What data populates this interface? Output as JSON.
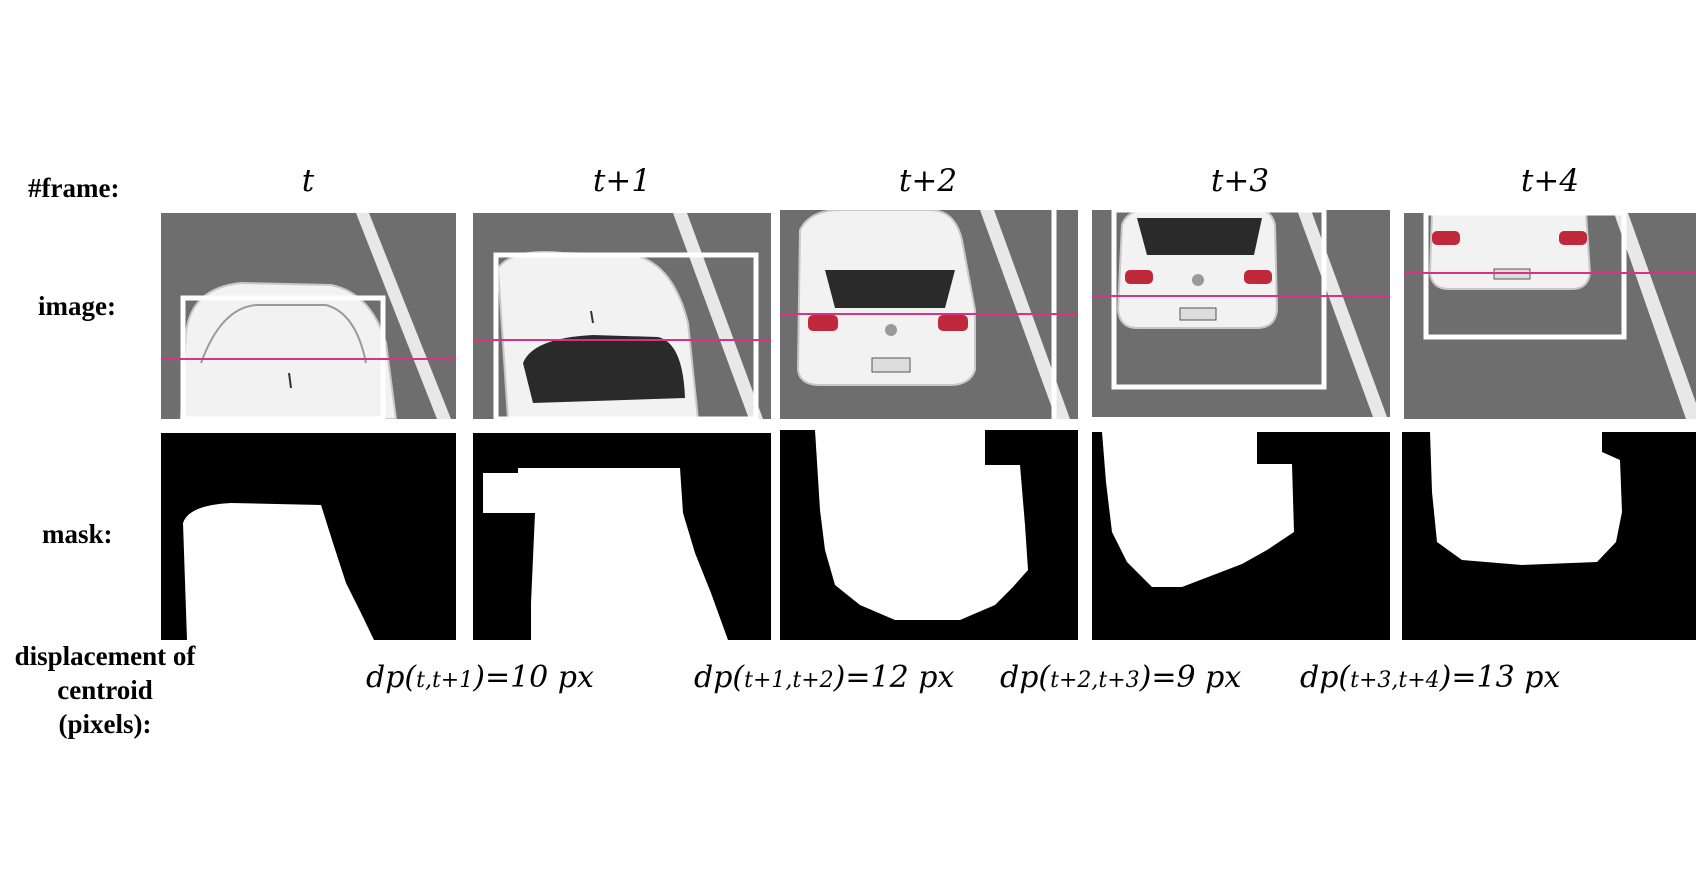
{
  "row_labels": {
    "frame": "#frame:",
    "image": "image:",
    "mask": "mask:",
    "displacement_line1": "displacement of",
    "displacement_line2": "centroid (pixels):"
  },
  "frames": [
    {
      "label": "t"
    },
    {
      "label": "t+1"
    },
    {
      "label": "t+2"
    },
    {
      "label": "t+3"
    },
    {
      "label": "t+4"
    }
  ],
  "displacements": [
    {
      "prefix": "dp(",
      "sub": "t,t+1",
      "suffix": ")=10 px"
    },
    {
      "prefix": "dp(",
      "sub": "t+1,t+2",
      "suffix": ")=12 px"
    },
    {
      "prefix": "dp(",
      "sub": "t+2,t+3",
      "suffix": ")=9 px"
    },
    {
      "prefix": "dp(",
      "sub": "t+3,t+4",
      "suffix": ")=13 px"
    }
  ],
  "colors": {
    "road": "#6e6e6e",
    "lane_marking": "#e8e8e8",
    "car_body": "#f2f2f2",
    "window": "#2a2a2a",
    "taillight": "#c0283c",
    "centroid_line": "#d63384",
    "bbox": "#ffffff",
    "mask_fg": "#ffffff",
    "mask_bg": "#000000"
  },
  "icons": {
    "car_top_view": "car-roof-icon",
    "car_rear_view": "car-rear-icon"
  }
}
